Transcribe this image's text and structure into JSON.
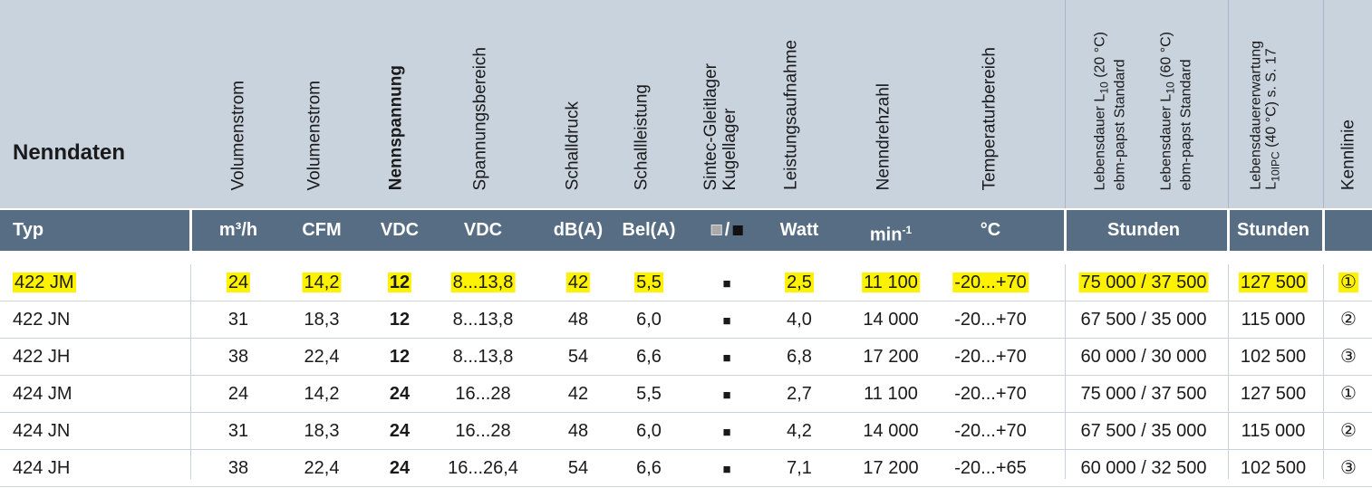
{
  "header": {
    "section_title": "Nenndaten",
    "columns": [
      {
        "lines": [
          "Volumenstrom"
        ]
      },
      {
        "lines": [
          "Volumenstrom"
        ]
      },
      {
        "lines": [
          "Nennspannung"
        ],
        "bold": true
      },
      {
        "lines": [
          "Spannungsbereich"
        ]
      },
      {
        "lines": [
          "Schalldruck"
        ]
      },
      {
        "lines": [
          "Schallleistung"
        ]
      },
      {
        "lines": [
          "Sintec-Gleitlager",
          "Kugellager"
        ]
      },
      {
        "lines": [
          "Leistungsaufnahme"
        ]
      },
      {
        "lines": [
          "Nenndrehzahl"
        ]
      },
      {
        "lines": [
          "Temperaturbereich"
        ]
      },
      {
        "sub_headers": [
          {
            "lines": [
              [
                "Lebensdauer L",
                "10",
                " (20 °C)"
              ],
              "ebm-papst Standard"
            ]
          },
          {
            "lines": [
              [
                "Lebensdauer L",
                "10",
                " (60 °C)"
              ],
              "ebm-papst Standard"
            ]
          }
        ]
      },
      {
        "lines": [
          "Lebensdauererwartung",
          [
            "L",
            "10IPC",
            " (40 °C)   s. S. 17"
          ]
        ],
        "small": true
      },
      {
        "lines": [
          "Kennlinie"
        ]
      }
    ]
  },
  "units_row": {
    "title": "Typ",
    "units": [
      "m³/h",
      "CFM",
      "VDC",
      "VDC",
      "dB(A)",
      "Bel(A)",
      {
        "separator": "/"
      },
      "Watt",
      [
        "min",
        "-1"
      ],
      "°C",
      "Stunden",
      "Stunden"
    ]
  },
  "rows": [
    {
      "cells": [
        "422 JM",
        "24",
        "14,2",
        "12",
        "8...13,8",
        "42",
        "5,5",
        "■",
        "2,5",
        "11 100",
        "-20...+70",
        "75 000 / 37 500",
        "127 500",
        "①"
      ],
      "highlighted": true
    },
    {
      "cells": [
        "422 JN",
        "31",
        "18,3",
        "12",
        "8...13,8",
        "48",
        "6,0",
        "■",
        "4,0",
        "14 000",
        "-20...+70",
        "67 500 / 35 000",
        "115 000",
        "②"
      ]
    },
    {
      "cells": [
        "422 JH",
        "38",
        "22,4",
        "12",
        "8...13,8",
        "54",
        "6,6",
        "■",
        "6,8",
        "17 200",
        "-20...+70",
        "60 000 / 30 000",
        "102 500",
        "③"
      ]
    },
    {
      "cells": [
        "424 JM",
        "24",
        "14,2",
        "24",
        "16...28",
        "42",
        "5,5",
        "■",
        "2,7",
        "11 100",
        "-20...+70",
        "75 000 / 37 500",
        "127 500",
        "①"
      ]
    },
    {
      "cells": [
        "424 JN",
        "31",
        "18,3",
        "24",
        "16...28",
        "48",
        "6,0",
        "■",
        "4,2",
        "14 000",
        "-20...+70",
        "67 500 / 35 000",
        "115 000",
        "②"
      ]
    },
    {
      "cells": [
        "424 JH",
        "38",
        "22,4",
        "24",
        "16...26,4",
        "54",
        "6,6",
        "■",
        "7,1",
        "17 200",
        "-20...+65",
        "60 000 / 32 500",
        "102 500",
        "③"
      ]
    }
  ]
}
